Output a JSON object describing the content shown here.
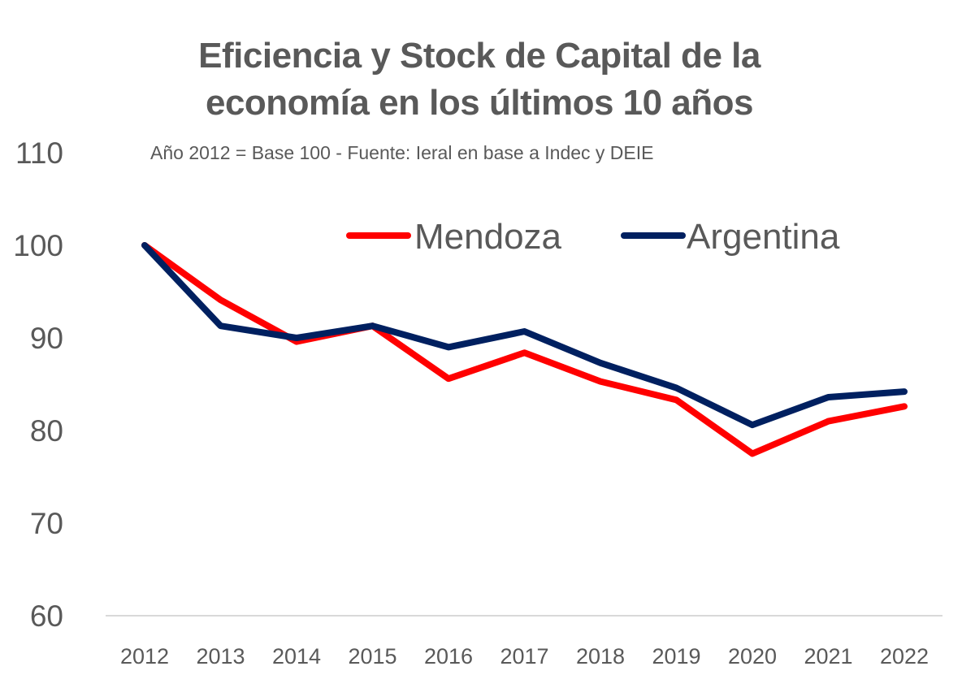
{
  "chart_data": {
    "type": "line",
    "title": "Eficiencia y Stock de Capital de la economía en los últimos 10 años",
    "title_lines": [
      "Eficiencia y Stock de Capital de la",
      "economía en los últimos 10 años"
    ],
    "subtitle": "Año 2012 = Base 100 - Fuente: Ieral en base a Indec y DEIE",
    "xlabel": "",
    "ylabel": "",
    "categories": [
      "2012",
      "2013",
      "2014",
      "2015",
      "2016",
      "2017",
      "2018",
      "2019",
      "2020",
      "2021",
      "2022"
    ],
    "ylim": [
      60,
      110
    ],
    "yticks": [
      60,
      70,
      80,
      90,
      100,
      110
    ],
    "grid": false,
    "legend_position": "top-right",
    "series": [
      {
        "name": "Mendoza",
        "color": "#FF0000",
        "values": [
          100,
          94.1,
          89.6,
          91.3,
          85.6,
          88.4,
          85.3,
          83.3,
          77.5,
          81.0,
          82.6
        ]
      },
      {
        "name": "Argentina",
        "color": "#002060",
        "values": [
          100,
          91.3,
          90.0,
          91.3,
          89.0,
          90.7,
          87.3,
          84.6,
          80.6,
          83.6,
          84.2
        ]
      }
    ]
  }
}
